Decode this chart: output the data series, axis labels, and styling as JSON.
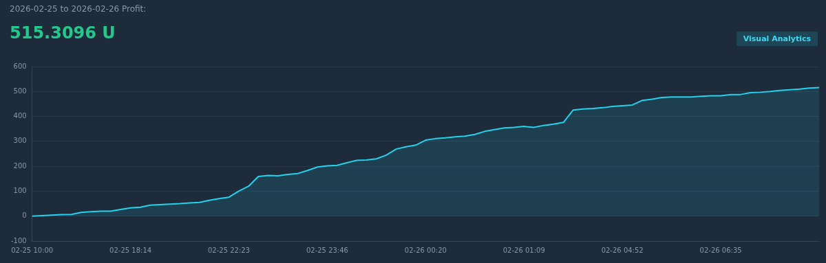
{
  "chart_data": {
    "type": "area",
    "title": "2026-02-25 to 2026-02-26 Profit:",
    "subtitle": "515.3096 U",
    "annotations": [
      "Visual Analytics"
    ],
    "categories": [
      "02-25 10:00",
      null,
      null,
      null,
      null,
      null,
      null,
      null,
      null,
      null,
      "02-25 18:14",
      null,
      null,
      null,
      null,
      null,
      null,
      null,
      null,
      null,
      "02-25 22:23",
      null,
      null,
      null,
      null,
      null,
      null,
      null,
      null,
      null,
      "02-25 23:46",
      null,
      null,
      null,
      null,
      null,
      null,
      null,
      null,
      null,
      "02-26 00:20",
      null,
      null,
      null,
      null,
      null,
      null,
      null,
      null,
      null,
      "02-26 01:09",
      null,
      null,
      null,
      null,
      null,
      null,
      null,
      null,
      null,
      "02-26 04:52",
      null,
      null,
      null,
      null,
      null,
      null,
      null,
      null,
      null,
      "02-26 06:35",
      null,
      null,
      null,
      null,
      null,
      null,
      null,
      null,
      null,
      null
    ],
    "series": [
      {
        "color": "#22d3ee",
        "values": [
          0,
          2,
          4,
          6,
          7,
          15,
          18,
          20,
          20,
          27,
          33,
          36,
          44,
          46,
          48,
          50,
          53,
          55,
          63,
          70,
          76,
          100,
          120,
          159,
          163,
          162,
          167,
          171,
          183,
          197,
          202,
          204,
          214,
          224,
          225,
          230,
          245,
          269,
          278,
          285,
          305,
          311,
          314,
          318,
          321,
          328,
          340,
          347,
          354,
          356,
          360,
          356,
          364,
          369,
          376,
          426,
          430,
          432,
          435,
          440,
          443,
          446,
          464,
          469,
          476,
          478,
          478,
          478,
          481,
          483,
          483,
          488,
          488,
          495,
          497,
          500,
          504,
          507,
          510,
          514,
          516
        ]
      }
    ],
    "ylim": [
      -100,
      600
    ],
    "yticks": [
      -100,
      0,
      100,
      200,
      300,
      400,
      500,
      600
    ],
    "grid": "y",
    "legend": false,
    "marker": "none",
    "line_style": "solid"
  }
}
